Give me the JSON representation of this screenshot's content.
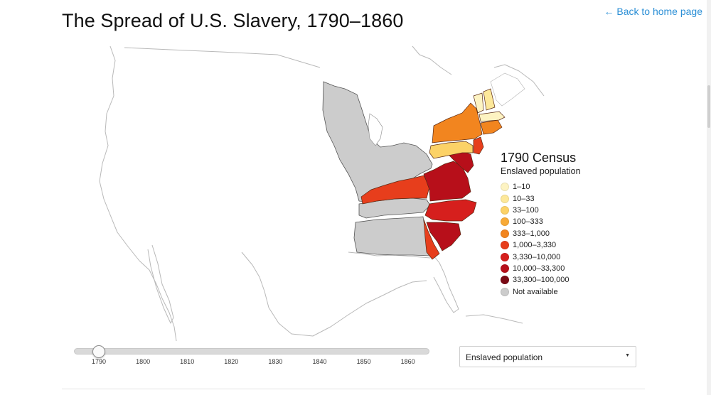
{
  "page": {
    "title": "The Spread of U.S. Slavery, 1790–1860",
    "home_link": "← Back to home page"
  },
  "map": {
    "census_title": "1790 Census",
    "subtitle": "Enslaved population",
    "legend": [
      {
        "label": "1–10",
        "color": "#fdf3c2"
      },
      {
        "label": "10–33",
        "color": "#fde89a"
      },
      {
        "label": "33–100",
        "color": "#fcd267"
      },
      {
        "label": "100–333",
        "color": "#f8aa37"
      },
      {
        "label": "333–1,000",
        "color": "#f2851f"
      },
      {
        "label": "1,000–3,330",
        "color": "#e73e1c"
      },
      {
        "label": "3,330–10,000",
        "color": "#d61f1d"
      },
      {
        "label": "10,000–33,300",
        "color": "#b70f1a"
      },
      {
        "label": "33,300–100,000",
        "color": "#7a0a15"
      },
      {
        "label": "Not available",
        "color": "#cccccc"
      }
    ],
    "regions": [
      {
        "name": "Northwest Territory",
        "category": "Not available"
      },
      {
        "name": "Southwest Territory",
        "category": "Not available"
      },
      {
        "name": "Georgia western claims",
        "category": "Not available"
      },
      {
        "name": "Kentucky",
        "category": "1,000–3,330"
      },
      {
        "name": "Virginia",
        "category": "10,000–33,300"
      },
      {
        "name": "North Carolina",
        "category": "3,330–10,000"
      },
      {
        "name": "South Carolina",
        "category": "10,000–33,300"
      },
      {
        "name": "Georgia",
        "category": "1,000–3,330"
      },
      {
        "name": "Maryland",
        "category": "10,000–33,300"
      },
      {
        "name": "Delaware",
        "category": "1,000–3,330"
      },
      {
        "name": "Pennsylvania",
        "category": "33–100"
      },
      {
        "name": "New Jersey",
        "category": "1,000–3,330"
      },
      {
        "name": "New York",
        "category": "333–1,000"
      },
      {
        "name": "Connecticut",
        "category": "333–1,000"
      },
      {
        "name": "Rhode Island",
        "category": "333–1,000"
      },
      {
        "name": "Massachusetts",
        "category": "1–10"
      },
      {
        "name": "Vermont",
        "category": "1–10"
      },
      {
        "name": "New Hampshire",
        "category": "10–33"
      }
    ]
  },
  "timeline": {
    "selected_year": "1790",
    "years": [
      "1790",
      "1800",
      "1810",
      "1820",
      "1830",
      "1840",
      "1850",
      "1860"
    ]
  },
  "measure_select": {
    "selected": "Enslaved population"
  }
}
